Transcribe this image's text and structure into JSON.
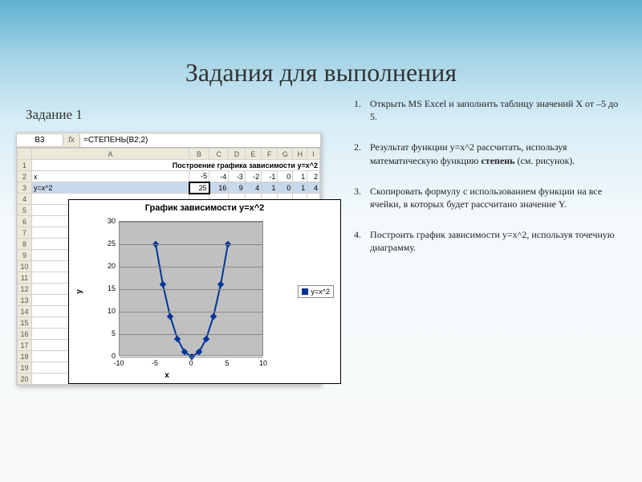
{
  "title": "Задания для выполнения",
  "subtitle": "Задание 1",
  "steps": [
    {
      "text_a": "Открыть MS Excel и заполнить таблицу значений X от –5 до 5."
    },
    {
      "text_a": "Результат функции y=x^2 рассчитать, используя математическую функцию ",
      "bold": "степень",
      "text_b": " (см. рисунок)."
    },
    {
      "text_a": "Скопировать формулу с использованием функции на все ячейки, в которых будет рассчитано значение Y."
    },
    {
      "text_a": "Построить график зависимости y=x^2, используя точечную диаграмму."
    }
  ],
  "excel": {
    "activeCell": "B3",
    "formula": "=СТЕПЕНЬ(B2;2)",
    "columns": [
      "",
      "A",
      "B",
      "C",
      "D",
      "E",
      "F",
      "G",
      "H",
      "I"
    ],
    "row1_label": "Построение графика зависимости y=x^2",
    "row2": {
      "label": "x",
      "vals": [
        "-5",
        "-4",
        "-3",
        "-2",
        "-1",
        "0",
        "1",
        "2"
      ]
    },
    "row3": {
      "label": "y=x^2",
      "vals": [
        "25",
        "16",
        "9",
        "4",
        "1",
        "0",
        "1",
        "4"
      ]
    },
    "emptyRows": [
      "4",
      "5",
      "6",
      "7",
      "8",
      "9",
      "10",
      "11",
      "12",
      "13",
      "14",
      "15",
      "16",
      "17",
      "18",
      "19",
      "20"
    ]
  },
  "chart": {
    "title": "График зависимости y=x^2",
    "legend": "y=x^2",
    "ylabelAxis": "y",
    "xlabelAxis": "x",
    "yticks": [
      30,
      25,
      20,
      15,
      10,
      5,
      0
    ],
    "xticks": [
      -10,
      -5,
      0,
      5,
      10
    ],
    "ymax": 30,
    "xmin": -10,
    "xmax": 10,
    "series_color": "#003399",
    "points": [
      {
        "x": -5,
        "y": 25
      },
      {
        "x": -4,
        "y": 16
      },
      {
        "x": -3,
        "y": 9
      },
      {
        "x": -2,
        "y": 4
      },
      {
        "x": -1,
        "y": 1
      },
      {
        "x": 0,
        "y": 0
      },
      {
        "x": 1,
        "y": 1
      },
      {
        "x": 2,
        "y": 4
      },
      {
        "x": 3,
        "y": 9
      },
      {
        "x": 4,
        "y": 16
      },
      {
        "x": 5,
        "y": 25
      }
    ]
  }
}
